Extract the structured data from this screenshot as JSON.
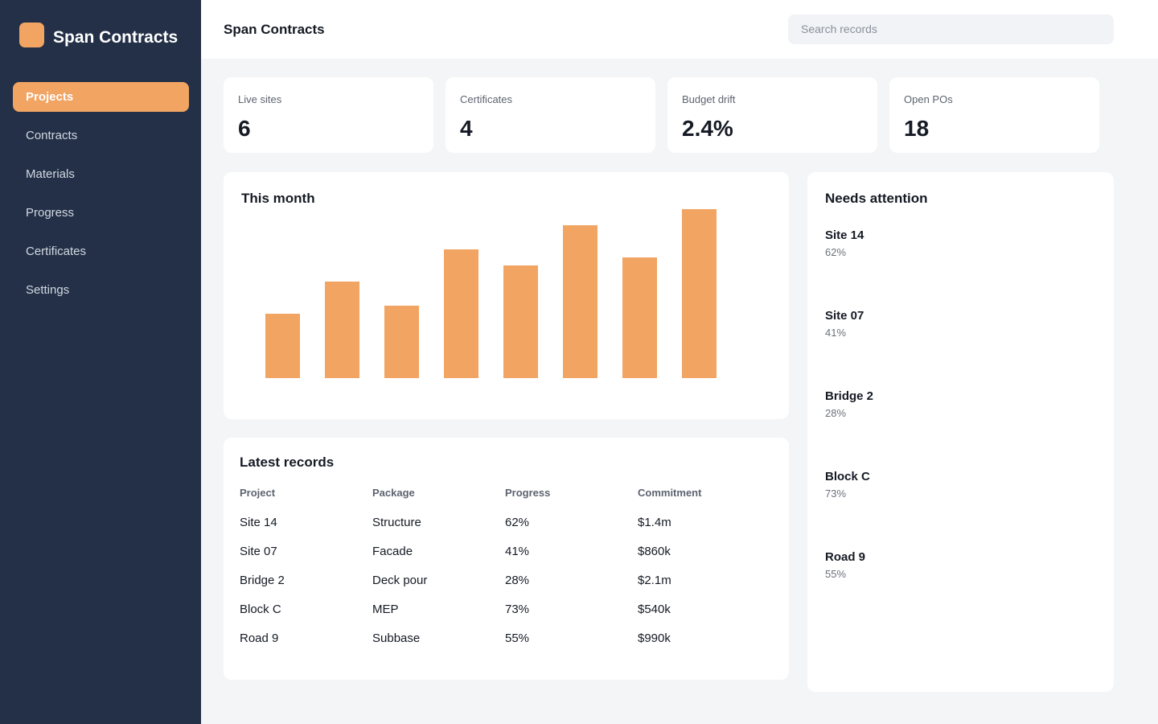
{
  "brand": {
    "title": "Span Contracts"
  },
  "nav": [
    "Projects",
    "Contracts",
    "Materials",
    "Progress",
    "Certificates",
    "Settings"
  ],
  "header": {
    "title": "Span Contracts",
    "search_placeholder": "Search records"
  },
  "kpis": [
    {
      "label": "Live sites",
      "value": "6"
    },
    {
      "label": "Certificates",
      "value": "4"
    },
    {
      "label": "Budget drift",
      "value": "2.4%"
    },
    {
      "label": "Open POs",
      "value": "18"
    }
  ],
  "chart_data": {
    "type": "bar",
    "title": "This month",
    "values": [
      80,
      120,
      90,
      160,
      140,
      190,
      150,
      210
    ],
    "color": "#f2a462"
  },
  "table": {
    "title": "Latest records",
    "columns": [
      "Project",
      "Package",
      "Progress",
      "Commitment"
    ],
    "rows": [
      [
        "Site 14",
        "Structure",
        "62%",
        "$1.4m"
      ],
      [
        "Site 07",
        "Facade",
        "41%",
        "$860k"
      ],
      [
        "Bridge 2",
        "Deck pour",
        "28%",
        "$2.1m"
      ],
      [
        "Block C",
        "MEP",
        "73%",
        "$540k"
      ],
      [
        "Road 9",
        "Subbase",
        "55%",
        "$990k"
      ]
    ]
  },
  "attention": {
    "title": "Needs attention",
    "items": [
      {
        "name": "Site 14",
        "value": "62%"
      },
      {
        "name": "Site 07",
        "value": "41%"
      },
      {
        "name": "Bridge 2",
        "value": "28%"
      },
      {
        "name": "Block C",
        "value": "73%"
      },
      {
        "name": "Road 9",
        "value": "55%"
      }
    ]
  }
}
